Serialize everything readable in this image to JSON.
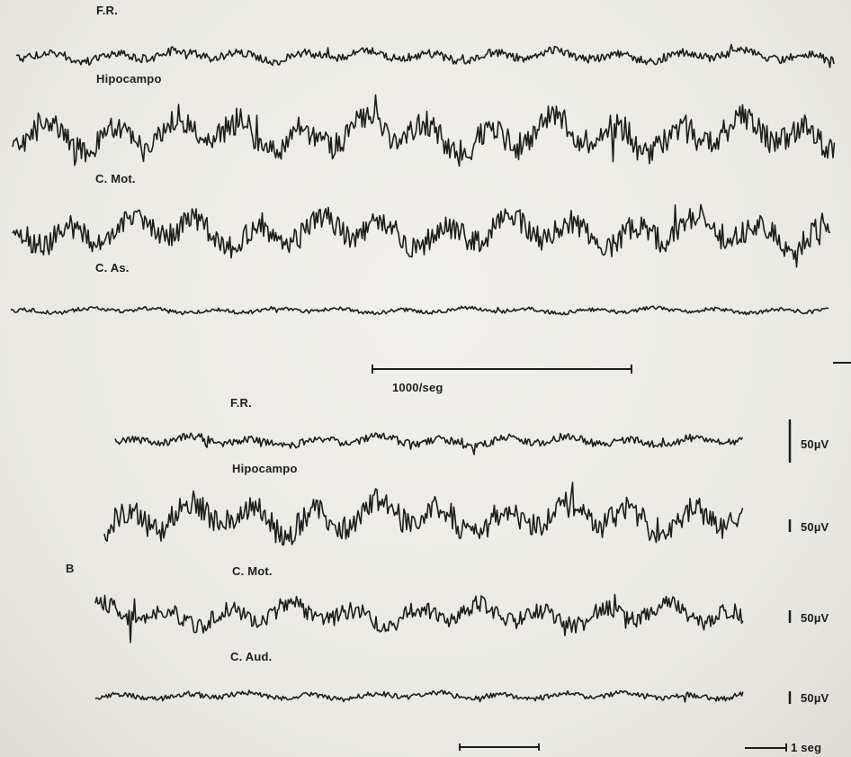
{
  "section_a": {
    "traces": [
      {
        "label": "F.R.",
        "amplitude": 0.8,
        "seed": 11
      },
      {
        "label": "Hipocampo",
        "amplitude": 1.6,
        "seed": 23
      },
      {
        "label": "C. Mot.",
        "amplitude": 1.4,
        "seed": 37
      },
      {
        "label": "C. As.",
        "amplitude": 0.5,
        "seed": 51
      }
    ],
    "time_scale_label": "1000/seg"
  },
  "section_b": {
    "panel_label": "B",
    "traces": [
      {
        "label": "F.R.",
        "amplitude": 0.8,
        "seed": 61,
        "scale_label": "50µV"
      },
      {
        "label": "Hipocampo",
        "amplitude": 1.5,
        "seed": 73,
        "scale_label": "50µV"
      },
      {
        "label": "C. Mot.",
        "amplitude": 1.2,
        "seed": 89,
        "scale_label": "50µV"
      },
      {
        "label": "C. Aud.",
        "amplitude": 0.6,
        "seed": 97,
        "scale_label": "50µV"
      }
    ],
    "time_scale_label": "1 seg"
  },
  "colors": {
    "ink": "#1d1d1d",
    "paper": "#ecebe6"
  }
}
